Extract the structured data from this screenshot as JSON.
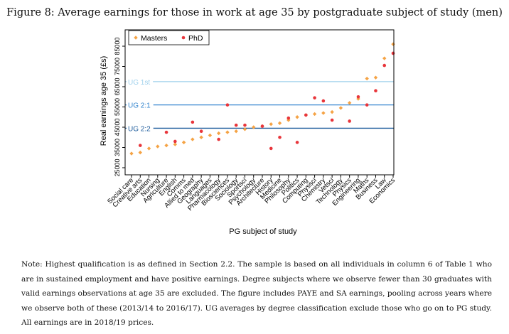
{
  "figure": {
    "title": "Figure 8: Average earnings for those in work at age 35 by postgraduate subject of study (men)",
    "note": "Note: Highest qualification is as defined in Section 2.2. The sample is based on all individuals in column 6 of Table 1 who are in sustained employment and have positive earnings. Degree subjects where we observe fewer than 30 graduates with valid earnings observations at age 35 are excluded. The figure includes PAYE and SA earnings, pooling across years where we observe both of these (2013/14 to 2016/17). UG averages by degree classification exclude those who go on to PG study. All earnings are in 2018/19 prices."
  },
  "chart_data": {
    "type": "scatter",
    "title": "Figure 8: Average earnings for those in work at age 35 by postgraduate subject of study (men)",
    "xlabel": "PG subject of study",
    "ylabel": "Real earnings age 35 (£s)",
    "ylim": [
      25000,
      88000
    ],
    "yticks": [
      "25000",
      "35000",
      "45000",
      "55000",
      "65000",
      "75000",
      "85000"
    ],
    "grid": false,
    "legend": {
      "placement": "top-left",
      "entries": [
        "Masters",
        "PhD"
      ]
    },
    "colors": {
      "masters": "#F5A345",
      "phd": "#E8353B",
      "ug1": "#9FD0EC",
      "ug21": "#3586CF",
      "ug22": "#1E5C9C",
      "frame": "#000000"
    },
    "categories": [
      "Social care",
      "Creative arts",
      "Education",
      "Nursing",
      "Agriculture",
      "English",
      "Comms",
      "Allied to med",
      "Geography",
      "Languages",
      "Pharmacology",
      "Biosciences",
      "Sociology",
      "Sportsci",
      "Psychology",
      "Architecture",
      "History",
      "Medicine",
      "Philosophy",
      "Politics",
      "Computing",
      "Physsci",
      "Chemistry",
      "Vetsci",
      "Technology",
      "Physics",
      "Engineering",
      "Maths",
      "Business",
      "Law",
      "Economics"
    ],
    "series": [
      {
        "name": "Masters",
        "marker": "diamond",
        "values": [
          32000,
          32500,
          34500,
          35500,
          36000,
          36500,
          37500,
          39000,
          40000,
          41000,
          42000,
          42500,
          43000,
          44000,
          45000,
          45500,
          46500,
          47000,
          48500,
          50000,
          51000,
          51500,
          52000,
          52500,
          54500,
          57000,
          59000,
          69000,
          69500,
          79000,
          86000
        ]
      },
      {
        "name": "PhD",
        "marker": "circle",
        "values": [
          null,
          36000,
          null,
          null,
          42500,
          38000,
          null,
          47500,
          43000,
          null,
          39000,
          56000,
          46000,
          46000,
          null,
          45500,
          34500,
          40000,
          49500,
          37500,
          51000,
          59500,
          58000,
          48500,
          null,
          48000,
          60000,
          56000,
          63000,
          75500,
          81500
        ]
      }
    ],
    "reference_lines": [
      {
        "label": "UG 1st",
        "value": 67500
      },
      {
        "label": "UG 2:1",
        "value": 56000
      },
      {
        "label": "UG 2:2",
        "value": 44500
      }
    ]
  }
}
